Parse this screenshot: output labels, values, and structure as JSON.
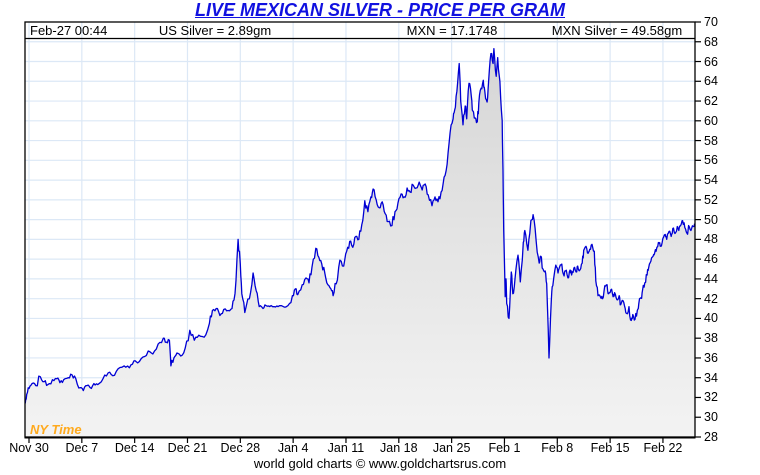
{
  "title": "LIVE MEXICAN SILVER - PRICE PER GRAM",
  "header": {
    "timestamp": "Feb-27  00:44",
    "us_silver": "US Silver = 2.89gm",
    "mxn_rate": "MXN = 17.1748",
    "mxn_silver": "MXN Silver = 49.58gm"
  },
  "watermark": "NY Time",
  "footer": "world gold charts © www.goldchartsrus.com",
  "colors": {
    "line": "#0000d4",
    "title": "#1111e0",
    "grid": "#dce8f6",
    "watermark": "#ffaa1e",
    "border": "#000000",
    "area_top": "#d4d4d4",
    "area_bottom": "#f3f3f3"
  },
  "chart_data": {
    "type": "line",
    "title": "LIVE MEXICAN SILVER - PRICE PER GRAM",
    "ylabel": "",
    "xlabel": "",
    "grid": true,
    "legend_position": "none",
    "last_value": 49.58,
    "y_axis": {
      "min": 28,
      "max": 70,
      "step": 2,
      "ticks": [
        28,
        30,
        32,
        34,
        36,
        38,
        40,
        42,
        44,
        46,
        48,
        50,
        52,
        54,
        56,
        58,
        60,
        62,
        64,
        66,
        68,
        70
      ]
    },
    "x_axis": {
      "tick_labels": [
        "Nov 30",
        "Dec 7",
        "Dec 14",
        "Dec 21",
        "Dec 28",
        "Jan 4",
        "Jan 11",
        "Jan 18",
        "Jan 25",
        "Feb 1",
        "Feb 8",
        "Feb 15",
        "Feb 22"
      ],
      "tick_days": [
        0,
        7,
        14,
        21,
        28,
        35,
        42,
        49,
        56,
        63,
        70,
        77,
        84
      ]
    },
    "series": [
      {
        "name": "MXN Silver price per gram",
        "points": [
          [
            -0.5,
            31.4
          ],
          [
            -0.3,
            32.3
          ],
          [
            0,
            32.9
          ],
          [
            0.4,
            33.4
          ],
          [
            0.9,
            33.2
          ],
          [
            1.5,
            34.1
          ],
          [
            2.0,
            33.6
          ],
          [
            2.5,
            33.3
          ],
          [
            3.1,
            33.8
          ],
          [
            3.7,
            33.9
          ],
          [
            4.1,
            33.5
          ],
          [
            4.6,
            33.8
          ],
          [
            5.2,
            34.0
          ],
          [
            5.7,
            34.3
          ],
          [
            6.2,
            33.9
          ],
          [
            6.8,
            33.0
          ],
          [
            7.2,
            32.7
          ],
          [
            7.7,
            33.2
          ],
          [
            8.1,
            33.0
          ],
          [
            8.6,
            33.4
          ],
          [
            9.1,
            33.3
          ],
          [
            9.8,
            33.9
          ],
          [
            10.5,
            34.5
          ],
          [
            11.1,
            34.2
          ],
          [
            11.8,
            34.9
          ],
          [
            12.6,
            35.2
          ],
          [
            13.3,
            35.0
          ],
          [
            13.9,
            35.7
          ],
          [
            14.4,
            35.5
          ],
          [
            15.1,
            36.1
          ],
          [
            15.8,
            36.7
          ],
          [
            16.4,
            36.4
          ],
          [
            17.1,
            37.4
          ],
          [
            17.8,
            38.0
          ],
          [
            18.2,
            37.6
          ],
          [
            18.6,
            37.8
          ],
          [
            18.8,
            35.2
          ],
          [
            19.2,
            36.0
          ],
          [
            19.6,
            36.5
          ],
          [
            20.1,
            36.2
          ],
          [
            20.7,
            37.0
          ],
          [
            21.3,
            38.8
          ],
          [
            21.9,
            37.8
          ],
          [
            22.5,
            38.3
          ],
          [
            23.2,
            38.1
          ],
          [
            23.9,
            39.5
          ],
          [
            24.3,
            40.8
          ],
          [
            24.8,
            41.0
          ],
          [
            25.3,
            40.3
          ],
          [
            25.8,
            40.9
          ],
          [
            26.4,
            40.8
          ],
          [
            26.9,
            41.0
          ],
          [
            27.3,
            42.5
          ],
          [
            27.7,
            48.0
          ],
          [
            28.0,
            45.5
          ],
          [
            28.2,
            42.5
          ],
          [
            28.6,
            40.6
          ],
          [
            29.2,
            42.0
          ],
          [
            29.7,
            44.6
          ],
          [
            30.1,
            42.8
          ],
          [
            30.5,
            41.2
          ],
          [
            31.0,
            41.0
          ],
          [
            31.4,
            41.3
          ],
          [
            31.9,
            41.2
          ],
          [
            32.5,
            41.2
          ],
          [
            33.0,
            41.2
          ],
          [
            33.7,
            41.2
          ],
          [
            34.3,
            41.3
          ],
          [
            34.9,
            42.3
          ],
          [
            35.3,
            43.0
          ],
          [
            35.6,
            42.4
          ],
          [
            36.2,
            43.4
          ],
          [
            36.7,
            44.1
          ],
          [
            37.1,
            43.6
          ],
          [
            37.5,
            45.2
          ],
          [
            38.0,
            47.1
          ],
          [
            38.4,
            46.2
          ],
          [
            38.8,
            45.5
          ],
          [
            39.2,
            44.6
          ],
          [
            39.6,
            43.4
          ],
          [
            40.0,
            43.0
          ],
          [
            40.3,
            42.3
          ],
          [
            40.7,
            43.5
          ],
          [
            41.2,
            45.9
          ],
          [
            41.7,
            45.3
          ],
          [
            42.1,
            46.8
          ],
          [
            42.5,
            47.8
          ],
          [
            42.9,
            47.2
          ],
          [
            43.3,
            48.3
          ],
          [
            43.7,
            48.0
          ],
          [
            44.1,
            49.5
          ],
          [
            44.5,
            51.9
          ],
          [
            44.9,
            50.8
          ],
          [
            45.3,
            52.3
          ],
          [
            45.6,
            53.1
          ],
          [
            46.0,
            52.0
          ],
          [
            46.4,
            51.2
          ],
          [
            46.8,
            51.8
          ],
          [
            47.2,
            50.6
          ],
          [
            47.6,
            49.8
          ],
          [
            48.1,
            49.4
          ],
          [
            48.5,
            50.8
          ],
          [
            48.9,
            51.7
          ],
          [
            49.3,
            52.6
          ],
          [
            49.7,
            52.3
          ],
          [
            50.1,
            53.2
          ],
          [
            50.5,
            52.8
          ],
          [
            50.9,
            53.5
          ],
          [
            51.3,
            53.2
          ],
          [
            51.7,
            53.8
          ],
          [
            52.1,
            53.0
          ],
          [
            52.5,
            53.6
          ],
          [
            52.9,
            52.5
          ],
          [
            53.4,
            51.4
          ],
          [
            53.8,
            52.3
          ],
          [
            54.2,
            51.8
          ],
          [
            54.6,
            52.8
          ],
          [
            55.0,
            54.3
          ],
          [
            55.4,
            55.6
          ],
          [
            55.8,
            58.8
          ],
          [
            56.2,
            60.2
          ],
          [
            56.4,
            61.1
          ],
          [
            56.7,
            63.0
          ],
          [
            57.0,
            65.8
          ],
          [
            57.2,
            62.0
          ],
          [
            57.5,
            59.6
          ],
          [
            57.8,
            61.5
          ],
          [
            58.0,
            60.2
          ],
          [
            58.3,
            63.8
          ],
          [
            58.6,
            62.5
          ],
          [
            58.8,
            61.0
          ],
          [
            59.1,
            60.3
          ],
          [
            59.4,
            59.9
          ],
          [
            59.6,
            61.8
          ],
          [
            59.9,
            63.3
          ],
          [
            60.2,
            64.1
          ],
          [
            60.4,
            63.0
          ],
          [
            60.7,
            61.9
          ],
          [
            60.9,
            64.0
          ],
          [
            61.2,
            66.8
          ],
          [
            61.5,
            65.8
          ],
          [
            61.6,
            67.3
          ],
          [
            61.9,
            64.5
          ],
          [
            62.1,
            66.4
          ],
          [
            62.4,
            64.0
          ],
          [
            62.7,
            60.0
          ],
          [
            62.8,
            55.0
          ],
          [
            62.9,
            49.0
          ],
          [
            63.1,
            42.2
          ],
          [
            63.2,
            44.0
          ],
          [
            63.3,
            41.5
          ],
          [
            63.6,
            40.0
          ],
          [
            63.9,
            44.7
          ],
          [
            64.1,
            42.5
          ],
          [
            64.4,
            44.0
          ],
          [
            64.8,
            46.4
          ],
          [
            65.1,
            43.7
          ],
          [
            65.5,
            47.7
          ],
          [
            65.7,
            48.9
          ],
          [
            66.1,
            46.9
          ],
          [
            66.5,
            49.9
          ],
          [
            66.8,
            50.5
          ],
          [
            67.2,
            47.8
          ],
          [
            67.6,
            45.6
          ],
          [
            67.8,
            46.3
          ],
          [
            68.1,
            45.0
          ],
          [
            68.4,
            44.8
          ],
          [
            68.6,
            43.5
          ],
          [
            68.9,
            36.0
          ],
          [
            69.2,
            41.8
          ],
          [
            69.4,
            43.3
          ],
          [
            69.8,
            45.4
          ],
          [
            70.1,
            44.6
          ],
          [
            70.3,
            45.2
          ],
          [
            70.6,
            45.5
          ],
          [
            70.9,
            44.3
          ],
          [
            71.1,
            44.8
          ],
          [
            71.4,
            44.1
          ],
          [
            71.7,
            44.9
          ],
          [
            71.9,
            44.4
          ],
          [
            72.2,
            45.1
          ],
          [
            72.5,
            44.7
          ],
          [
            72.7,
            45.3
          ],
          [
            73.0,
            44.9
          ],
          [
            73.3,
            45.6
          ],
          [
            73.5,
            46.9
          ],
          [
            73.8,
            47.3
          ],
          [
            74.1,
            46.6
          ],
          [
            74.3,
            47.0
          ],
          [
            74.6,
            47.5
          ],
          [
            74.9,
            46.8
          ],
          [
            75.1,
            43.8
          ],
          [
            75.4,
            42.3
          ],
          [
            75.7,
            42.2
          ],
          [
            76.0,
            42.0
          ],
          [
            76.3,
            43.3
          ],
          [
            76.6,
            43.4
          ],
          [
            76.8,
            42.5
          ],
          [
            77.1,
            42.9
          ],
          [
            77.4,
            42.2
          ],
          [
            77.6,
            42.6
          ],
          [
            77.9,
            41.9
          ],
          [
            78.2,
            42.3
          ],
          [
            78.4,
            41.4
          ],
          [
            78.7,
            41.8
          ],
          [
            79.0,
            41.0
          ],
          [
            79.2,
            40.5
          ],
          [
            79.5,
            41.2
          ],
          [
            79.8,
            39.8
          ],
          [
            80.0,
            40.4
          ],
          [
            80.3,
            39.9
          ],
          [
            80.6,
            40.8
          ],
          [
            80.8,
            41.5
          ],
          [
            81.1,
            42.1
          ],
          [
            81.3,
            42.9
          ],
          [
            81.6,
            43.6
          ],
          [
            81.9,
            44.4
          ],
          [
            82.1,
            45.1
          ],
          [
            82.4,
            45.8
          ],
          [
            82.7,
            46.3
          ],
          [
            82.9,
            46.6
          ],
          [
            83.2,
            47.2
          ],
          [
            83.5,
            47.6
          ],
          [
            83.7,
            47.3
          ],
          [
            84.0,
            48.1
          ],
          [
            84.3,
            48.5
          ],
          [
            84.5,
            48.0
          ],
          [
            84.8,
            48.8
          ],
          [
            85.1,
            48.3
          ],
          [
            85.3,
            49.1
          ],
          [
            85.6,
            48.6
          ],
          [
            85.9,
            49.3
          ],
          [
            86.1,
            48.9
          ],
          [
            86.4,
            49.5
          ],
          [
            86.6,
            49.9
          ],
          [
            86.9,
            49.2
          ],
          [
            87.2,
            48.6
          ],
          [
            87.4,
            49.4
          ],
          [
            87.7,
            48.9
          ],
          [
            88.0,
            49.3
          ],
          [
            88.2,
            49.6
          ]
        ]
      }
    ]
  }
}
